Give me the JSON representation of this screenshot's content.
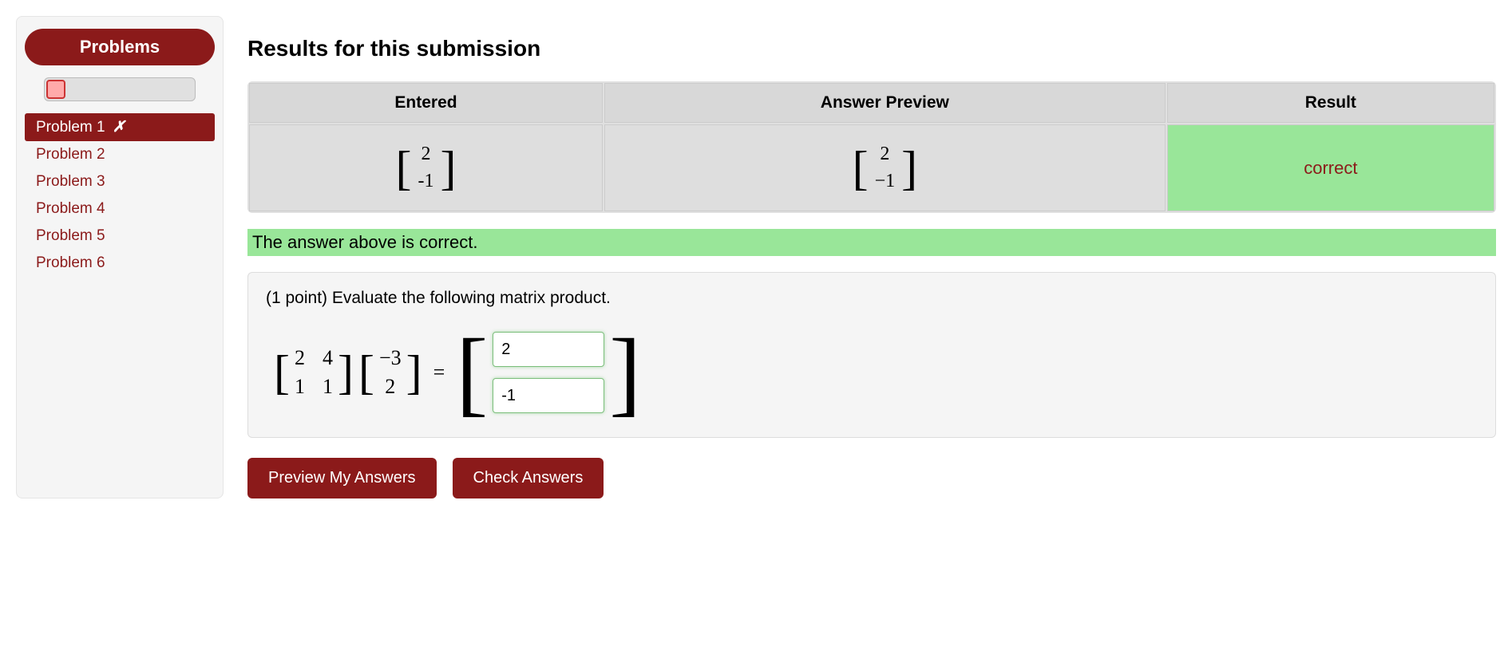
{
  "sidebar": {
    "title": "Problems",
    "items": [
      {
        "label": "Problem 1",
        "indicator": "✗",
        "active": true
      },
      {
        "label": "Problem 2",
        "indicator": "",
        "active": false
      },
      {
        "label": "Problem 3",
        "indicator": "",
        "active": false
      },
      {
        "label": "Problem 4",
        "indicator": "",
        "active": false
      },
      {
        "label": "Problem 5",
        "indicator": "",
        "active": false
      },
      {
        "label": "Problem 6",
        "indicator": "",
        "active": false
      }
    ],
    "progress": {
      "fill_color": "#ffaaaa",
      "border_color": "#cc3333"
    }
  },
  "results": {
    "title": "Results for this submission",
    "headers": [
      "Entered",
      "Answer Preview",
      "Result"
    ],
    "entered": {
      "rows": [
        "2",
        "-1"
      ]
    },
    "preview": {
      "rows": [
        "2",
        "−1"
      ]
    },
    "result_text": "correct",
    "feedback": "The answer above is correct.",
    "colors": {
      "correct_bg": "#99e699",
      "correct_text": "#8b1a1a",
      "header_bg": "#d8d8d8",
      "cell_bg": "#dedede"
    }
  },
  "problem": {
    "prompt": "(1 point) Evaluate the following matrix product.",
    "matrix_a": {
      "rows": [
        [
          "2",
          "4"
        ],
        [
          "1",
          "1"
        ]
      ]
    },
    "matrix_b": {
      "rows": [
        [
          "−3"
        ],
        [
          "2"
        ]
      ]
    },
    "equals": "=",
    "inputs": [
      {
        "value": "2"
      },
      {
        "value": "-1"
      }
    ]
  },
  "buttons": {
    "preview": "Preview My Answers",
    "check": "Check Answers"
  },
  "theme": {
    "brand_color": "#8b1a1a",
    "page_bg": "#ffffff",
    "panel_bg": "#f5f5f5"
  }
}
